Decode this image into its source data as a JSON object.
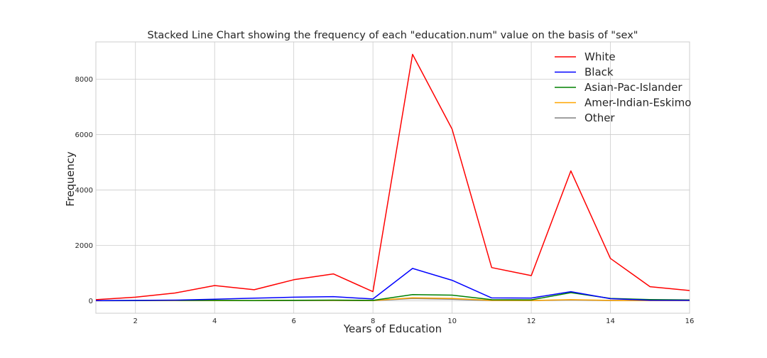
{
  "chart_data": {
    "type": "line",
    "title": "Stacked Line Chart showing the frequency of each \"education.num\" value on the basis of \"sex\"",
    "xlabel": "Years of Education",
    "ylabel": "Frequency",
    "xlim": [
      1,
      16
    ],
    "ylim": [
      -450,
      9350
    ],
    "xticks": [
      2,
      4,
      6,
      8,
      10,
      12,
      14,
      16
    ],
    "yticks": [
      0,
      2000,
      4000,
      6000,
      8000
    ],
    "grid": true,
    "legend_position": "top-right",
    "x": [
      1,
      2,
      3,
      4,
      5,
      6,
      7,
      8,
      9,
      10,
      11,
      12,
      13,
      14,
      15,
      16
    ],
    "series": [
      {
        "name": "White",
        "color": "#ff0000",
        "values": [
          40,
          130,
          280,
          550,
          400,
          760,
          970,
          330,
          8900,
          6200,
          1200,
          910,
          4690,
          1530,
          510,
          370
        ]
      },
      {
        "name": "Black",
        "color": "#0000ff",
        "values": [
          5,
          15,
          25,
          55,
          95,
          130,
          150,
          65,
          1170,
          740,
          105,
          100,
          330,
          75,
          20,
          15
        ]
      },
      {
        "name": "Asian-Pac-Islander",
        "color": "#008000",
        "values": [
          4,
          8,
          18,
          15,
          10,
          20,
          25,
          15,
          225,
          205,
          40,
          35,
          295,
          85,
          45,
          30
        ]
      },
      {
        "name": "Amer-Indian-Eskimo",
        "color": "#ffa500",
        "values": [
          2,
          4,
          8,
          10,
          10,
          15,
          15,
          10,
          110,
          85,
          15,
          10,
          40,
          15,
          5,
          5
        ]
      },
      {
        "name": "Other",
        "color": "#808080",
        "values": [
          2,
          5,
          10,
          10,
          5,
          10,
          10,
          5,
          80,
          55,
          10,
          10,
          35,
          10,
          5,
          5
        ]
      }
    ]
  }
}
